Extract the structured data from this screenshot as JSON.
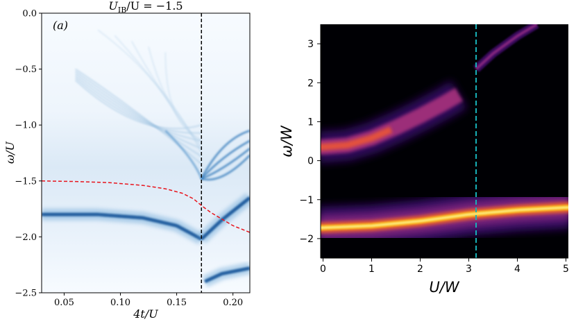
{
  "chart_data": [
    {
      "type": "heatmap",
      "title": "U_IB/U = −1.5",
      "title_main": "U",
      "title_sub": "IB",
      "title_rest": "/U = −1.5",
      "panel_label": "(a)",
      "xlabel": "4t/U",
      "ylabel": "ω/U",
      "xlim": [
        0.03,
        0.215
      ],
      "ylim": [
        -2.5,
        0.0
      ],
      "xticks": [
        0.05,
        0.1,
        0.15,
        0.2
      ],
      "xtick_labels": [
        "0.05",
        "0.10",
        "0.15",
        "0.20"
      ],
      "yticks": [
        0.0,
        -0.5,
        -1.0,
        -1.5,
        -2.0,
        -2.5
      ],
      "ytick_labels": [
        "0.0",
        "−0.5",
        "−1.0",
        "−1.5",
        "−2.0",
        "−2.5"
      ],
      "colormap": "Blues",
      "critical_line": {
        "x": 0.172,
        "color": "#000000",
        "style": "dashed"
      },
      "mean_field_curve": {
        "color": "#e8141c",
        "style": "dashed",
        "x": [
          0.03,
          0.06,
          0.09,
          0.12,
          0.14,
          0.155,
          0.165,
          0.172,
          0.18,
          0.19,
          0.2,
          0.215
        ],
        "y": [
          -1.5,
          -1.505,
          -1.515,
          -1.54,
          -1.57,
          -1.61,
          -1.66,
          -1.72,
          -1.78,
          -1.84,
          -1.9,
          -1.96
        ]
      },
      "bands": [
        {
          "name": "main",
          "x": [
            0.03,
            0.172,
            0.215
          ],
          "y": [
            -1.5,
            -1.5,
            -1.5
          ]
        },
        {
          "name": "lower",
          "x": [
            0.03,
            0.08,
            0.12,
            0.15,
            0.172
          ],
          "y": [
            -1.8,
            -1.8,
            -1.83,
            -1.9,
            -2.02
          ]
        },
        {
          "name": "lower-right",
          "x": [
            0.172,
            0.19,
            0.215
          ],
          "y": [
            -2.02,
            -1.85,
            -1.65
          ]
        },
        {
          "name": "bottom-right",
          "x": [
            0.175,
            0.19,
            0.215
          ],
          "y": [
            -2.4,
            -2.33,
            -2.28
          ]
        }
      ]
    },
    {
      "type": "heatmap",
      "title": "",
      "xlabel": "U/W",
      "ylabel": "ω/W",
      "xlim": [
        -0.05,
        5.05
      ],
      "ylim": [
        -2.5,
        3.5
      ],
      "xticks": [
        0,
        1,
        2,
        3,
        4,
        5
      ],
      "xtick_labels": [
        "0",
        "1",
        "2",
        "3",
        "4",
        "5"
      ],
      "yticks": [
        3,
        2,
        1,
        0,
        -1,
        -2
      ],
      "ytick_labels": [
        "3",
        "2",
        "1",
        "0",
        "−1",
        "−2"
      ],
      "colormap": "inferno",
      "critical_line": {
        "x": 3.15,
        "color": "#17b0b8",
        "style": "dashed"
      },
      "bands": [
        {
          "name": "lower-bright",
          "x": [
            0,
            1,
            2,
            3,
            4,
            5
          ],
          "y": [
            -1.72,
            -1.67,
            -1.55,
            -1.38,
            -1.27,
            -1.2
          ]
        },
        {
          "name": "upper-arc",
          "x": [
            0,
            0.5,
            1,
            1.5,
            2,
            2.5,
            2.8
          ],
          "y": [
            0.35,
            0.4,
            0.58,
            0.85,
            1.15,
            1.48,
            1.7
          ]
        },
        {
          "name": "upper-branch",
          "x": [
            3.15,
            3.5,
            4,
            4.4
          ],
          "y": [
            2.35,
            2.75,
            3.2,
            3.5
          ]
        }
      ]
    }
  ]
}
